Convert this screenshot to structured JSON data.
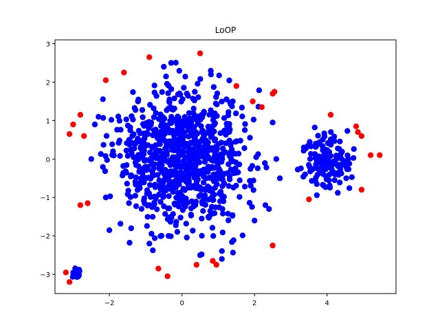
{
  "chart_data": {
    "type": "scatter",
    "title": "LoOP",
    "xlabel": "",
    "ylabel": "",
    "xlim": [
      -3.5,
      5.9
    ],
    "ylim": [
      -3.5,
      3.1
    ],
    "xticks": [
      -2,
      0,
      2,
      4
    ],
    "yticks": [
      -3,
      -2,
      -1,
      0,
      1,
      2,
      3
    ],
    "grid": false,
    "legend": "none",
    "colors": {
      "inlier": "#0000ff",
      "outlier": "#ff0000"
    },
    "series": [
      {
        "role": "inlier",
        "clusters": [
          {
            "center": [
              0.0,
              0.0
            ],
            "spread": [
              0.9,
              0.85
            ],
            "count": 900,
            "xrange": [
              -2.3,
              2.6
            ],
            "yrange": [
              -2.55,
              2.55
            ]
          },
          {
            "center": [
              4.0,
              -0.05
            ],
            "spread": [
              0.33,
              0.38
            ],
            "count": 140,
            "xrange": [
              3.1,
              5.0
            ],
            "yrange": [
              -1.0,
              0.9
            ]
          },
          {
            "center": [
              -2.9,
              -3.0
            ],
            "spread": [
              0.06,
              0.06
            ],
            "count": 30,
            "xrange": [
              -3.05,
              -2.75
            ],
            "yrange": [
              -3.15,
              -2.8
            ]
          }
        ],
        "extra_points": [
          [
            -2.3,
            1.1
          ],
          [
            -2.4,
            0.9
          ],
          [
            -2.5,
            0.0
          ],
          [
            -1.9,
            0.2
          ],
          [
            -2.1,
            -1.0
          ],
          [
            -2.0,
            -1.85
          ],
          [
            2.0,
            -1.6
          ],
          [
            2.3,
            -1.2
          ],
          [
            2.4,
            -1.3
          ],
          [
            2.5,
            0.95
          ],
          [
            2.6,
            0.0
          ],
          [
            2.7,
            -0.5
          ],
          [
            -0.5,
            2.4
          ],
          [
            -0.3,
            2.5
          ],
          [
            0.8,
            2.2
          ],
          [
            1.4,
            1.5
          ],
          [
            -0.9,
            -2.2
          ],
          [
            0.5,
            -2.5
          ],
          [
            1.1,
            -2.6
          ],
          [
            -1.4,
            -1.8
          ]
        ]
      },
      {
        "role": "outlier",
        "points": [
          [
            -3.2,
            -2.95
          ],
          [
            -3.1,
            -3.2
          ],
          [
            -3.1,
            0.65
          ],
          [
            -3.0,
            0.9
          ],
          [
            -2.8,
            1.15
          ],
          [
            -2.7,
            0.6
          ],
          [
            -2.8,
            -1.2
          ],
          [
            -2.6,
            -1.15
          ],
          [
            -2.1,
            2.05
          ],
          [
            -1.6,
            2.25
          ],
          [
            -0.9,
            2.65
          ],
          [
            0.5,
            2.75
          ],
          [
            1.5,
            1.9
          ],
          [
            1.95,
            1.5
          ],
          [
            2.2,
            1.35
          ],
          [
            2.5,
            1.7
          ],
          [
            2.55,
            1.75
          ],
          [
            -0.65,
            -2.85
          ],
          [
            -0.4,
            -3.05
          ],
          [
            0.4,
            -2.75
          ],
          [
            0.85,
            -2.65
          ],
          [
            0.95,
            -2.75
          ],
          [
            2.5,
            -2.25
          ],
          [
            3.5,
            -1.05
          ],
          [
            4.1,
            1.15
          ],
          [
            4.8,
            0.85
          ],
          [
            4.85,
            0.7
          ],
          [
            4.95,
            0.6
          ],
          [
            4.95,
            -0.8
          ],
          [
            5.2,
            0.1
          ],
          [
            5.45,
            0.1
          ]
        ]
      }
    ]
  }
}
